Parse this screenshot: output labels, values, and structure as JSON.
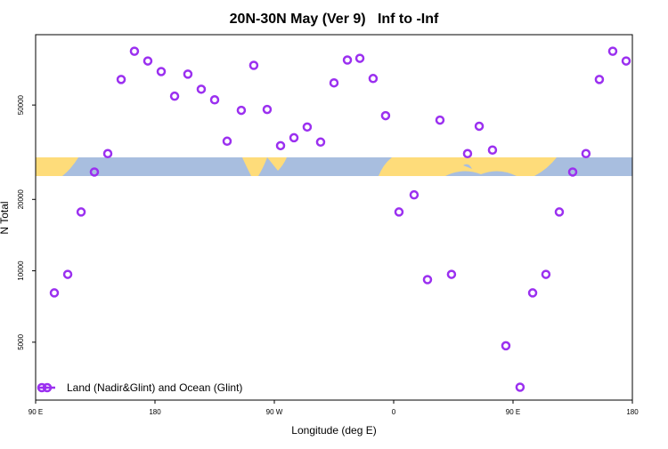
{
  "chart_data": {
    "type": "scatter",
    "title": "20N-30N May (Ver 9)   Inf to -Inf",
    "xlabel": "Longitude (deg E)",
    "ylabel": "N Total",
    "x": [
      104.1,
      114.2,
      124.3,
      134.3,
      144.4,
      154.5,
      164.5,
      174.6,
      184.7,
      194.8,
      204.8,
      214.9,
      225.0,
      234.4,
      245.1,
      254.5,
      264.6,
      274.7,
      284.8,
      294.8,
      304.9,
      315.0,
      325.1,
      334.5,
      344.5,
      353.9,
      364.0,
      375.4,
      385.5,
      394.9,
      403.6,
      415.7,
      424.5,
      434.5,
      444.6,
      455.3,
      464.8,
      474.8,
      484.9,
      495.0,
      505.0,
      515.1,
      525.2,
      535.3
    ],
    "series": [
      {
        "name": "Land (Nadir&Glint) and Ocean (Glint)",
        "color": "#9b30f0",
        "values": [
          8070,
          9660,
          17700,
          26100,
          31200,
          64100,
          84300,
          76700,
          69200,
          54500,
          67500,
          58300,
          52600,
          35200,
          47500,
          73500,
          47900,
          33700,
          36400,
          40400,
          34900,
          62000,
          77400,
          78700,
          64700,
          45100,
          17700,
          20900,
          9180,
          43200,
          9660,
          31200,
          40700,
          32300,
          4830,
          3230,
          8070,
          9660,
          17700,
          26100,
          31200,
          64100,
          84300,
          76700
        ]
      }
    ],
    "xlim": [
      90,
      540
    ],
    "ylim": [
      2850,
      99000
    ],
    "log_y": true,
    "xticks": [
      {
        "value": 90,
        "label": "90 E"
      },
      {
        "value": 180,
        "label": "180"
      },
      {
        "value": 270,
        "label": "90 W"
      },
      {
        "value": 360,
        "label": "0"
      },
      {
        "value": 450,
        "label": "90 E"
      },
      {
        "value": 540,
        "label": "180"
      }
    ],
    "yticks": [
      5000,
      10000,
      20000,
      50000
    ],
    "legend": "lower left"
  }
}
